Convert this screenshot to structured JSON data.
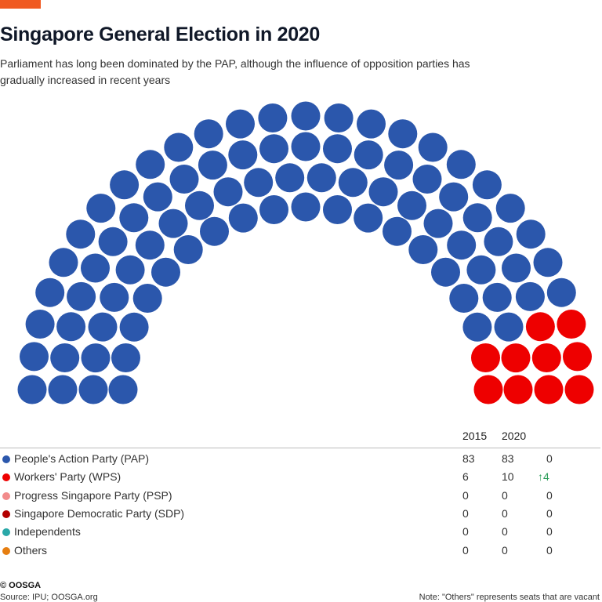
{
  "title": "Singapore General Election in 2020",
  "subtitle": "Parliament has long been dominated by the PAP, although the influence of opposition parties has gradually increased in recent years",
  "chart_data": {
    "type": "parliament",
    "total_seats": 93,
    "columns": [
      "2015",
      "2020",
      ""
    ],
    "parties": [
      {
        "name": "People's Action Party (PAP)",
        "color": "#2b57ac",
        "y2015": "83",
        "y2020": "83",
        "change": "0",
        "seats": 83
      },
      {
        "name": "Workers' Party (WPS)",
        "color": "#ee0000",
        "y2015": "6",
        "y2020": "10",
        "change": "4",
        "change_dir": "up",
        "seats": 10
      },
      {
        "name": "Progress Singapore Party (PSP)",
        "color": "#f28b8b",
        "y2015": "0",
        "y2020": "0",
        "change": "0",
        "seats": 0
      },
      {
        "name": "Singapore Democratic Party (SDP)",
        "color": "#b30000",
        "y2015": "0",
        "y2020": "0",
        "change": "0",
        "seats": 0
      },
      {
        "name": "Independents",
        "color": "#2aa8a8",
        "y2015": "0",
        "y2020": "0",
        "change": "0",
        "seats": 0
      },
      {
        "name": "Others",
        "color": "#e67e10",
        "y2015": "0",
        "y2020": "0",
        "change": "0",
        "seats": 0
      }
    ]
  },
  "footer": {
    "copyright": "© OOSGA",
    "source": "Source: IPU; OOSGA.org",
    "note": "Note: \"Others\" represents seats that are vacant"
  }
}
